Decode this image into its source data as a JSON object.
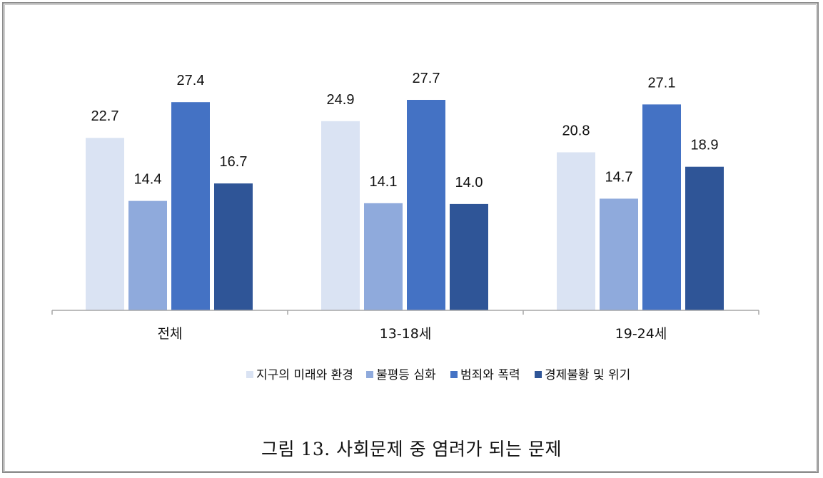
{
  "caption": "그림 13. 사회문제 중 염려가 되는 문제",
  "chart_data": {
    "type": "bar",
    "categories": [
      "전체",
      "13-18세",
      "19-24세"
    ],
    "series": [
      {
        "name": "지구의 미래와 환경",
        "color": "#dae3f3",
        "values": [
          22.7,
          24.9,
          20.8
        ]
      },
      {
        "name": "불평등 심화",
        "color": "#8faadc",
        "values": [
          14.4,
          14.1,
          14.7
        ]
      },
      {
        "name": "범죄와 폭력",
        "color": "#4472c4",
        "values": [
          27.4,
          27.7,
          27.1
        ]
      },
      {
        "name": "경제불황 및 위기",
        "color": "#2f5597",
        "values": [
          16.7,
          14.0,
          18.9
        ]
      }
    ],
    "ylim": [
      0,
      30
    ],
    "grid": false,
    "legend": "bottom"
  }
}
